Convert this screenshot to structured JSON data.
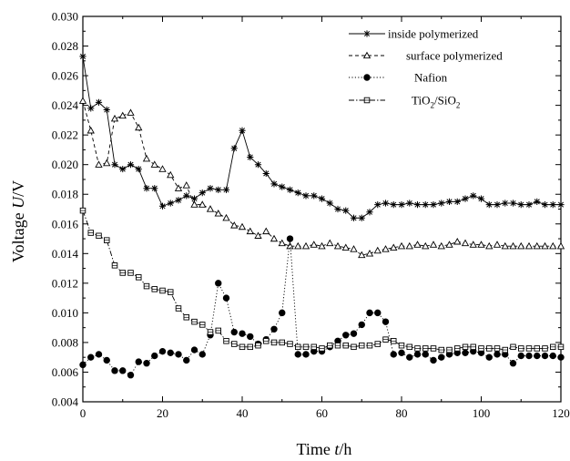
{
  "chart_data": {
    "type": "line",
    "xlabel_prefix": "Time ",
    "xlabel_var": "t",
    "xlabel_unit": "/h",
    "ylabel_prefix": "Voltage ",
    "ylabel_var": "U",
    "ylabel_unit": "/V",
    "xlim": [
      0,
      120
    ],
    "ylim": [
      0.004,
      0.03
    ],
    "xticks": [
      "0",
      "20",
      "40",
      "60",
      "80",
      "100",
      "120"
    ],
    "yticks": [
      "0.004",
      "0.006",
      "0.008",
      "0.010",
      "0.012",
      "0.014",
      "0.016",
      "0.018",
      "0.020",
      "0.022",
      "0.024",
      "0.026",
      "0.028",
      "0.030"
    ],
    "legend_position": "top-right",
    "series": [
      {
        "name": "inside polymerized",
        "legend_label": "inside polymerized",
        "marker": "star",
        "dash": "solid",
        "x": [
          0,
          2,
          4,
          6,
          8,
          10,
          12,
          14,
          16,
          18,
          20,
          22,
          24,
          26,
          28,
          30,
          32,
          34,
          36,
          38,
          40,
          42,
          44,
          46,
          48,
          50,
          52,
          54,
          56,
          58,
          60,
          62,
          64,
          66,
          68,
          70,
          72,
          74,
          76,
          78,
          80,
          82,
          84,
          86,
          88,
          90,
          92,
          94,
          96,
          98,
          100,
          102,
          104,
          106,
          108,
          110,
          112,
          114,
          116,
          118,
          120
        ],
        "y": [
          0.0273,
          0.0238,
          0.0242,
          0.0237,
          0.02,
          0.0197,
          0.02,
          0.0197,
          0.0184,
          0.0184,
          0.0172,
          0.0174,
          0.0176,
          0.0179,
          0.0177,
          0.0181,
          0.0184,
          0.0183,
          0.0183,
          0.0211,
          0.0223,
          0.0205,
          0.02,
          0.0194,
          0.0187,
          0.0185,
          0.0183,
          0.0181,
          0.0179,
          0.0179,
          0.0177,
          0.0174,
          0.017,
          0.0169,
          0.0164,
          0.0164,
          0.0168,
          0.0173,
          0.0174,
          0.0173,
          0.0173,
          0.0174,
          0.0173,
          0.0173,
          0.0173,
          0.0174,
          0.0175,
          0.0175,
          0.0177,
          0.0179,
          0.0177,
          0.0173,
          0.0173,
          0.0174,
          0.0174,
          0.0173,
          0.0173,
          0.0175,
          0.0173,
          0.0173,
          0.0173
        ]
      },
      {
        "name": "surface polymerized",
        "legend_label": "surface polymerized",
        "marker": "triangle",
        "dash": "dash",
        "x": [
          0,
          2,
          4,
          6,
          8,
          10,
          12,
          14,
          16,
          18,
          20,
          22,
          24,
          26,
          28,
          30,
          32,
          34,
          36,
          38,
          40,
          42,
          44,
          46,
          48,
          50,
          52,
          54,
          56,
          58,
          60,
          62,
          64,
          66,
          68,
          70,
          72,
          74,
          76,
          78,
          80,
          82,
          84,
          86,
          88,
          90,
          92,
          94,
          96,
          98,
          100,
          102,
          104,
          106,
          108,
          110,
          112,
          114,
          116,
          118,
          120
        ],
        "y": [
          0.0243,
          0.0223,
          0.02,
          0.0201,
          0.0231,
          0.0233,
          0.0235,
          0.0225,
          0.0204,
          0.02,
          0.0197,
          0.0193,
          0.0184,
          0.0186,
          0.0173,
          0.0173,
          0.017,
          0.0167,
          0.0164,
          0.0159,
          0.0158,
          0.0155,
          0.0152,
          0.0155,
          0.015,
          0.0147,
          0.0145,
          0.0145,
          0.0145,
          0.0146,
          0.0145,
          0.0147,
          0.0145,
          0.0144,
          0.0143,
          0.0139,
          0.014,
          0.0142,
          0.0143,
          0.0144,
          0.0145,
          0.0145,
          0.0146,
          0.0145,
          0.0146,
          0.0145,
          0.0146,
          0.0148,
          0.0147,
          0.0146,
          0.0146,
          0.0145,
          0.0146,
          0.0145,
          0.0145,
          0.0145,
          0.0145,
          0.0145,
          0.0145,
          0.0145,
          0.0145
        ]
      },
      {
        "name": "Nafion",
        "legend_label": "Nafion",
        "marker": "circle",
        "dash": "dot",
        "x": [
          0,
          2,
          4,
          6,
          8,
          10,
          12,
          14,
          16,
          18,
          20,
          22,
          24,
          26,
          28,
          30,
          32,
          34,
          36,
          38,
          40,
          42,
          44,
          46,
          48,
          50,
          52,
          54,
          56,
          58,
          60,
          62,
          64,
          66,
          68,
          70,
          72,
          74,
          76,
          78,
          80,
          82,
          84,
          86,
          88,
          90,
          92,
          94,
          96,
          98,
          100,
          102,
          104,
          106,
          108,
          110,
          112,
          114,
          116,
          118,
          120
        ],
        "y": [
          0.0065,
          0.007,
          0.0072,
          0.0068,
          0.0061,
          0.0061,
          0.0058,
          0.0067,
          0.0066,
          0.0071,
          0.0074,
          0.0073,
          0.0072,
          0.0068,
          0.0075,
          0.0072,
          0.0085,
          0.012,
          0.011,
          0.0087,
          0.0086,
          0.0084,
          0.0079,
          0.0082,
          0.0089,
          0.01,
          0.015,
          0.0072,
          0.0072,
          0.0074,
          0.0074,
          0.0077,
          0.0081,
          0.0085,
          0.0086,
          0.0092,
          0.01,
          0.01,
          0.0094,
          0.0072,
          0.0073,
          0.007,
          0.0072,
          0.0072,
          0.0068,
          0.007,
          0.0072,
          0.0073,
          0.0073,
          0.0074,
          0.0073,
          0.007,
          0.0072,
          0.0072,
          0.0066,
          0.0071,
          0.0071,
          0.0071,
          0.0071,
          0.0071,
          0.007
        ]
      },
      {
        "name": "TiO2/SiO2",
        "legend_label_parts": [
          "TiO",
          "2",
          "/SiO",
          "2"
        ],
        "marker": "square",
        "dash": "dashdot",
        "x": [
          0,
          2,
          4,
          6,
          8,
          10,
          12,
          14,
          16,
          18,
          20,
          22,
          24,
          26,
          28,
          30,
          32,
          34,
          36,
          38,
          40,
          42,
          44,
          46,
          48,
          50,
          52,
          54,
          56,
          58,
          60,
          62,
          64,
          66,
          68,
          70,
          72,
          74,
          76,
          78,
          80,
          82,
          84,
          86,
          88,
          90,
          92,
          94,
          96,
          98,
          100,
          102,
          104,
          106,
          108,
          110,
          112,
          114,
          116,
          118,
          120
        ],
        "y": [
          0.0169,
          0.0154,
          0.0152,
          0.0149,
          0.0132,
          0.0127,
          0.0127,
          0.0124,
          0.0118,
          0.0116,
          0.0115,
          0.0114,
          0.0103,
          0.0097,
          0.0094,
          0.0092,
          0.0087,
          0.0088,
          0.0081,
          0.0079,
          0.0077,
          0.0077,
          0.0078,
          0.0081,
          0.008,
          0.008,
          0.0079,
          0.0077,
          0.0077,
          0.0077,
          0.0076,
          0.0078,
          0.0078,
          0.0078,
          0.0077,
          0.0078,
          0.0078,
          0.0079,
          0.0082,
          0.0081,
          0.0078,
          0.0077,
          0.0076,
          0.0076,
          0.0076,
          0.0075,
          0.0075,
          0.0076,
          0.0077,
          0.0077,
          0.0076,
          0.0076,
          0.0076,
          0.0075,
          0.0077,
          0.0076,
          0.0076,
          0.0076,
          0.0076,
          0.0077,
          0.0077
        ]
      }
    ]
  }
}
